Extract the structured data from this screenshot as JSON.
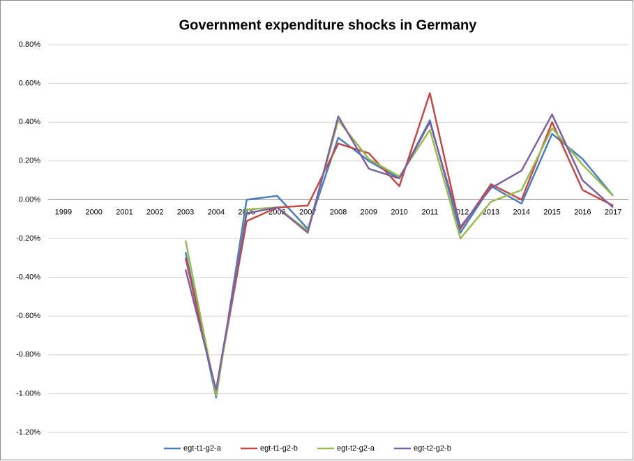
{
  "chart_data": {
    "type": "line",
    "title": "Government expenditure shocks in Germany",
    "categories": [
      "1999",
      "2000",
      "2001",
      "2002",
      "2003",
      "2004",
      "2005",
      "2006",
      "2007",
      "2008",
      "2009",
      "2010",
      "2011",
      "2012",
      "2013",
      "2014",
      "2015",
      "2016",
      "2017"
    ],
    "series": [
      {
        "name": "egt-t1-g2-a",
        "color": "#4a7ebb",
        "values": [
          null,
          null,
          null,
          null,
          -0.27,
          -1.02,
          0.0,
          0.02,
          -0.15,
          0.32,
          0.2,
          0.11,
          0.41,
          -0.17,
          0.07,
          -0.02,
          0.34,
          0.21,
          0.02
        ]
      },
      {
        "name": "egt-t1-g2-b",
        "color": "#be4b48",
        "values": [
          null,
          null,
          null,
          null,
          -0.3,
          -0.99,
          -0.11,
          -0.04,
          -0.03,
          0.29,
          0.24,
          0.07,
          0.55,
          -0.15,
          0.08,
          0.0,
          0.4,
          0.05,
          -0.03
        ]
      },
      {
        "name": "egt-t2-g2-a",
        "color": "#98b954",
        "values": [
          null,
          null,
          null,
          null,
          -0.21,
          -1.01,
          -0.05,
          -0.04,
          -0.16,
          0.41,
          0.21,
          0.12,
          0.36,
          -0.2,
          -0.01,
          0.05,
          0.37,
          0.18,
          0.02
        ]
      },
      {
        "name": "egt-t2-g2-b",
        "color": "#7d60a0",
        "values": [
          null,
          null,
          null,
          null,
          -0.36,
          -0.98,
          -0.07,
          -0.04,
          -0.17,
          0.43,
          0.16,
          0.11,
          0.4,
          -0.14,
          0.06,
          0.15,
          0.44,
          0.1,
          -0.04
        ]
      }
    ],
    "ylim": [
      -1.2,
      0.8
    ],
    "yticks": [
      {
        "value": -1.2,
        "label": "-1.20%"
      },
      {
        "value": -1.0,
        "label": "-1.00%"
      },
      {
        "value": -0.8,
        "label": "-0.80%"
      },
      {
        "value": -0.6,
        "label": "-0.60%"
      },
      {
        "value": -0.4,
        "label": "-0.40%"
      },
      {
        "value": -0.2,
        "label": "-0.20%"
      },
      {
        "value": 0,
        "label": "0.00%"
      },
      {
        "value": 0.2,
        "label": "0.20%"
      },
      {
        "value": 0.4,
        "label": "0.40%"
      },
      {
        "value": 0.6,
        "label": "0.60%"
      },
      {
        "value": 0.8,
        "label": "0.80%"
      }
    ],
    "grid": true,
    "legend": "bottom"
  }
}
